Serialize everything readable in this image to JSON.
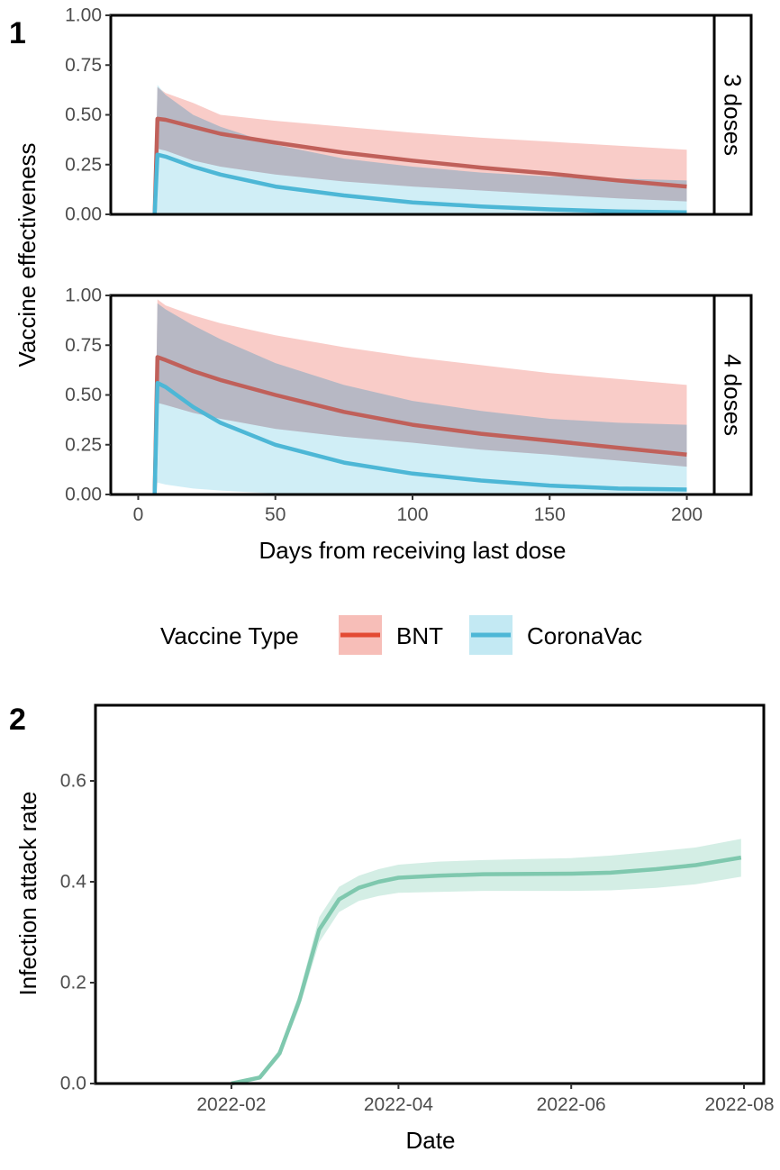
{
  "colors": {
    "bnt": "#E34A33",
    "coronavac": "#4DB7D6",
    "bnt_band": "#F4A39A",
    "coronavac_band": "#A9E0EE",
    "attack": "#7FC8AE",
    "attack_band": "#CDEBE0",
    "axis": "#000000",
    "tick_text": "#4D4D4D"
  },
  "chart_data": [
    {
      "type": "line",
      "panel_label": "1",
      "facets": [
        "3 doses",
        "4 doses"
      ],
      "xlabel": "Days from receiving last dose",
      "ylabel": "Vaccine effectiveness",
      "xlim": [
        -10,
        210
      ],
      "ylim": [
        0,
        1
      ],
      "x_ticks": [
        0,
        50,
        100,
        150,
        200
      ],
      "x_tick_labels": [
        "0",
        "50",
        "100",
        "150",
        "200"
      ],
      "y_ticks": [
        0,
        0.25,
        0.5,
        0.75,
        1
      ],
      "y_tick_labels": [
        "0.00",
        "0.25",
        "0.50",
        "0.75",
        "1.00"
      ],
      "legend": {
        "title": "Vaccine Type",
        "position": "bottom",
        "entries": [
          "BNT",
          "CoronaVac"
        ]
      },
      "grid": false,
      "series": [
        {
          "name": "BNT",
          "facet": "3 doses",
          "x": [
            6,
            7,
            10,
            20,
            30,
            50,
            75,
            100,
            125,
            150,
            175,
            200
          ],
          "y": [
            0,
            0.48,
            0.475,
            0.44,
            0.405,
            0.36,
            0.31,
            0.27,
            0.235,
            0.205,
            0.17,
            0.14
          ],
          "lower": [
            0,
            0.33,
            0.32,
            0.27,
            0.24,
            0.2,
            0.165,
            0.14,
            0.12,
            0.1,
            0.08,
            0.065
          ],
          "upper": [
            0,
            0.64,
            0.61,
            0.56,
            0.5,
            0.47,
            0.44,
            0.41,
            0.385,
            0.365,
            0.345,
            0.325
          ]
        },
        {
          "name": "CoronaVac",
          "facet": "3 doses",
          "x": [
            6,
            7,
            10,
            20,
            30,
            50,
            75,
            100,
            125,
            150,
            175,
            200
          ],
          "y": [
            0,
            0.3,
            0.29,
            0.24,
            0.2,
            0.14,
            0.095,
            0.06,
            0.04,
            0.025,
            0.015,
            0.01
          ],
          "lower": [
            0,
            0,
            0,
            0,
            0,
            0,
            0,
            0,
            0,
            0,
            0,
            0
          ],
          "upper": [
            0,
            0.65,
            0.6,
            0.5,
            0.44,
            0.35,
            0.28,
            0.24,
            0.21,
            0.19,
            0.18,
            0.17
          ]
        },
        {
          "name": "BNT",
          "facet": "4 doses",
          "x": [
            6,
            7,
            10,
            20,
            30,
            50,
            75,
            100,
            125,
            150,
            175,
            200
          ],
          "y": [
            0,
            0.69,
            0.675,
            0.62,
            0.575,
            0.5,
            0.415,
            0.35,
            0.305,
            0.27,
            0.235,
            0.2
          ],
          "lower": [
            0,
            0.46,
            0.45,
            0.41,
            0.38,
            0.33,
            0.29,
            0.26,
            0.225,
            0.2,
            0.17,
            0.14
          ],
          "upper": [
            0,
            0.98,
            0.95,
            0.9,
            0.86,
            0.8,
            0.74,
            0.69,
            0.65,
            0.61,
            0.58,
            0.55
          ]
        },
        {
          "name": "CoronaVac",
          "facet": "4 doses",
          "x": [
            6,
            7,
            10,
            20,
            30,
            50,
            75,
            100,
            125,
            150,
            175,
            200
          ],
          "y": [
            0,
            0.56,
            0.54,
            0.44,
            0.36,
            0.25,
            0.16,
            0.105,
            0.07,
            0.045,
            0.03,
            0.025
          ],
          "lower": [
            0,
            0.06,
            0.05,
            0.03,
            0.02,
            0.005,
            0,
            0,
            0,
            0,
            0,
            0
          ],
          "upper": [
            0,
            0.96,
            0.93,
            0.85,
            0.78,
            0.66,
            0.55,
            0.47,
            0.42,
            0.38,
            0.36,
            0.35
          ]
        }
      ]
    },
    {
      "type": "line",
      "panel_label": "2",
      "xlabel": "Date",
      "ylabel": "Infection attack rate",
      "x_type": "date",
      "xlim": [
        "2021-12-15",
        "2022-08-08"
      ],
      "ylim": [
        0,
        0.75
      ],
      "x_ticks": [
        "2022-02-01",
        "2022-04-01",
        "2022-06-01",
        "2022-08-01"
      ],
      "x_tick_labels": [
        "2022-02",
        "2022-04",
        "2022-06",
        "2022-08"
      ],
      "y_ticks": [
        0,
        0.2,
        0.4,
        0.6
      ],
      "y_tick_labels": [
        "0.0",
        "0.2",
        "0.4",
        "0.6"
      ],
      "grid": false,
      "series": [
        {
          "x": [
            "2022-02-01",
            "2022-02-11",
            "2022-02-18",
            "2022-02-25",
            "2022-03-04",
            "2022-03-11",
            "2022-03-18",
            "2022-03-25",
            "2022-04-01",
            "2022-04-15",
            "2022-05-01",
            "2022-06-01",
            "2022-06-15",
            "2022-07-01",
            "2022-07-15",
            "2022-07-31"
          ],
          "y": [
            0,
            0.012,
            0.06,
            0.165,
            0.305,
            0.365,
            0.388,
            0.4,
            0.408,
            0.412,
            0.415,
            0.416,
            0.418,
            0.425,
            0.433,
            0.448
          ],
          "lower": [
            0,
            0.008,
            0.052,
            0.15,
            0.28,
            0.34,
            0.362,
            0.372,
            0.378,
            0.38,
            0.382,
            0.382,
            0.383,
            0.388,
            0.395,
            0.41
          ],
          "upper": [
            0,
            0.016,
            0.068,
            0.18,
            0.33,
            0.39,
            0.412,
            0.425,
            0.434,
            0.44,
            0.443,
            0.447,
            0.452,
            0.46,
            0.468,
            0.485
          ]
        }
      ]
    }
  ]
}
